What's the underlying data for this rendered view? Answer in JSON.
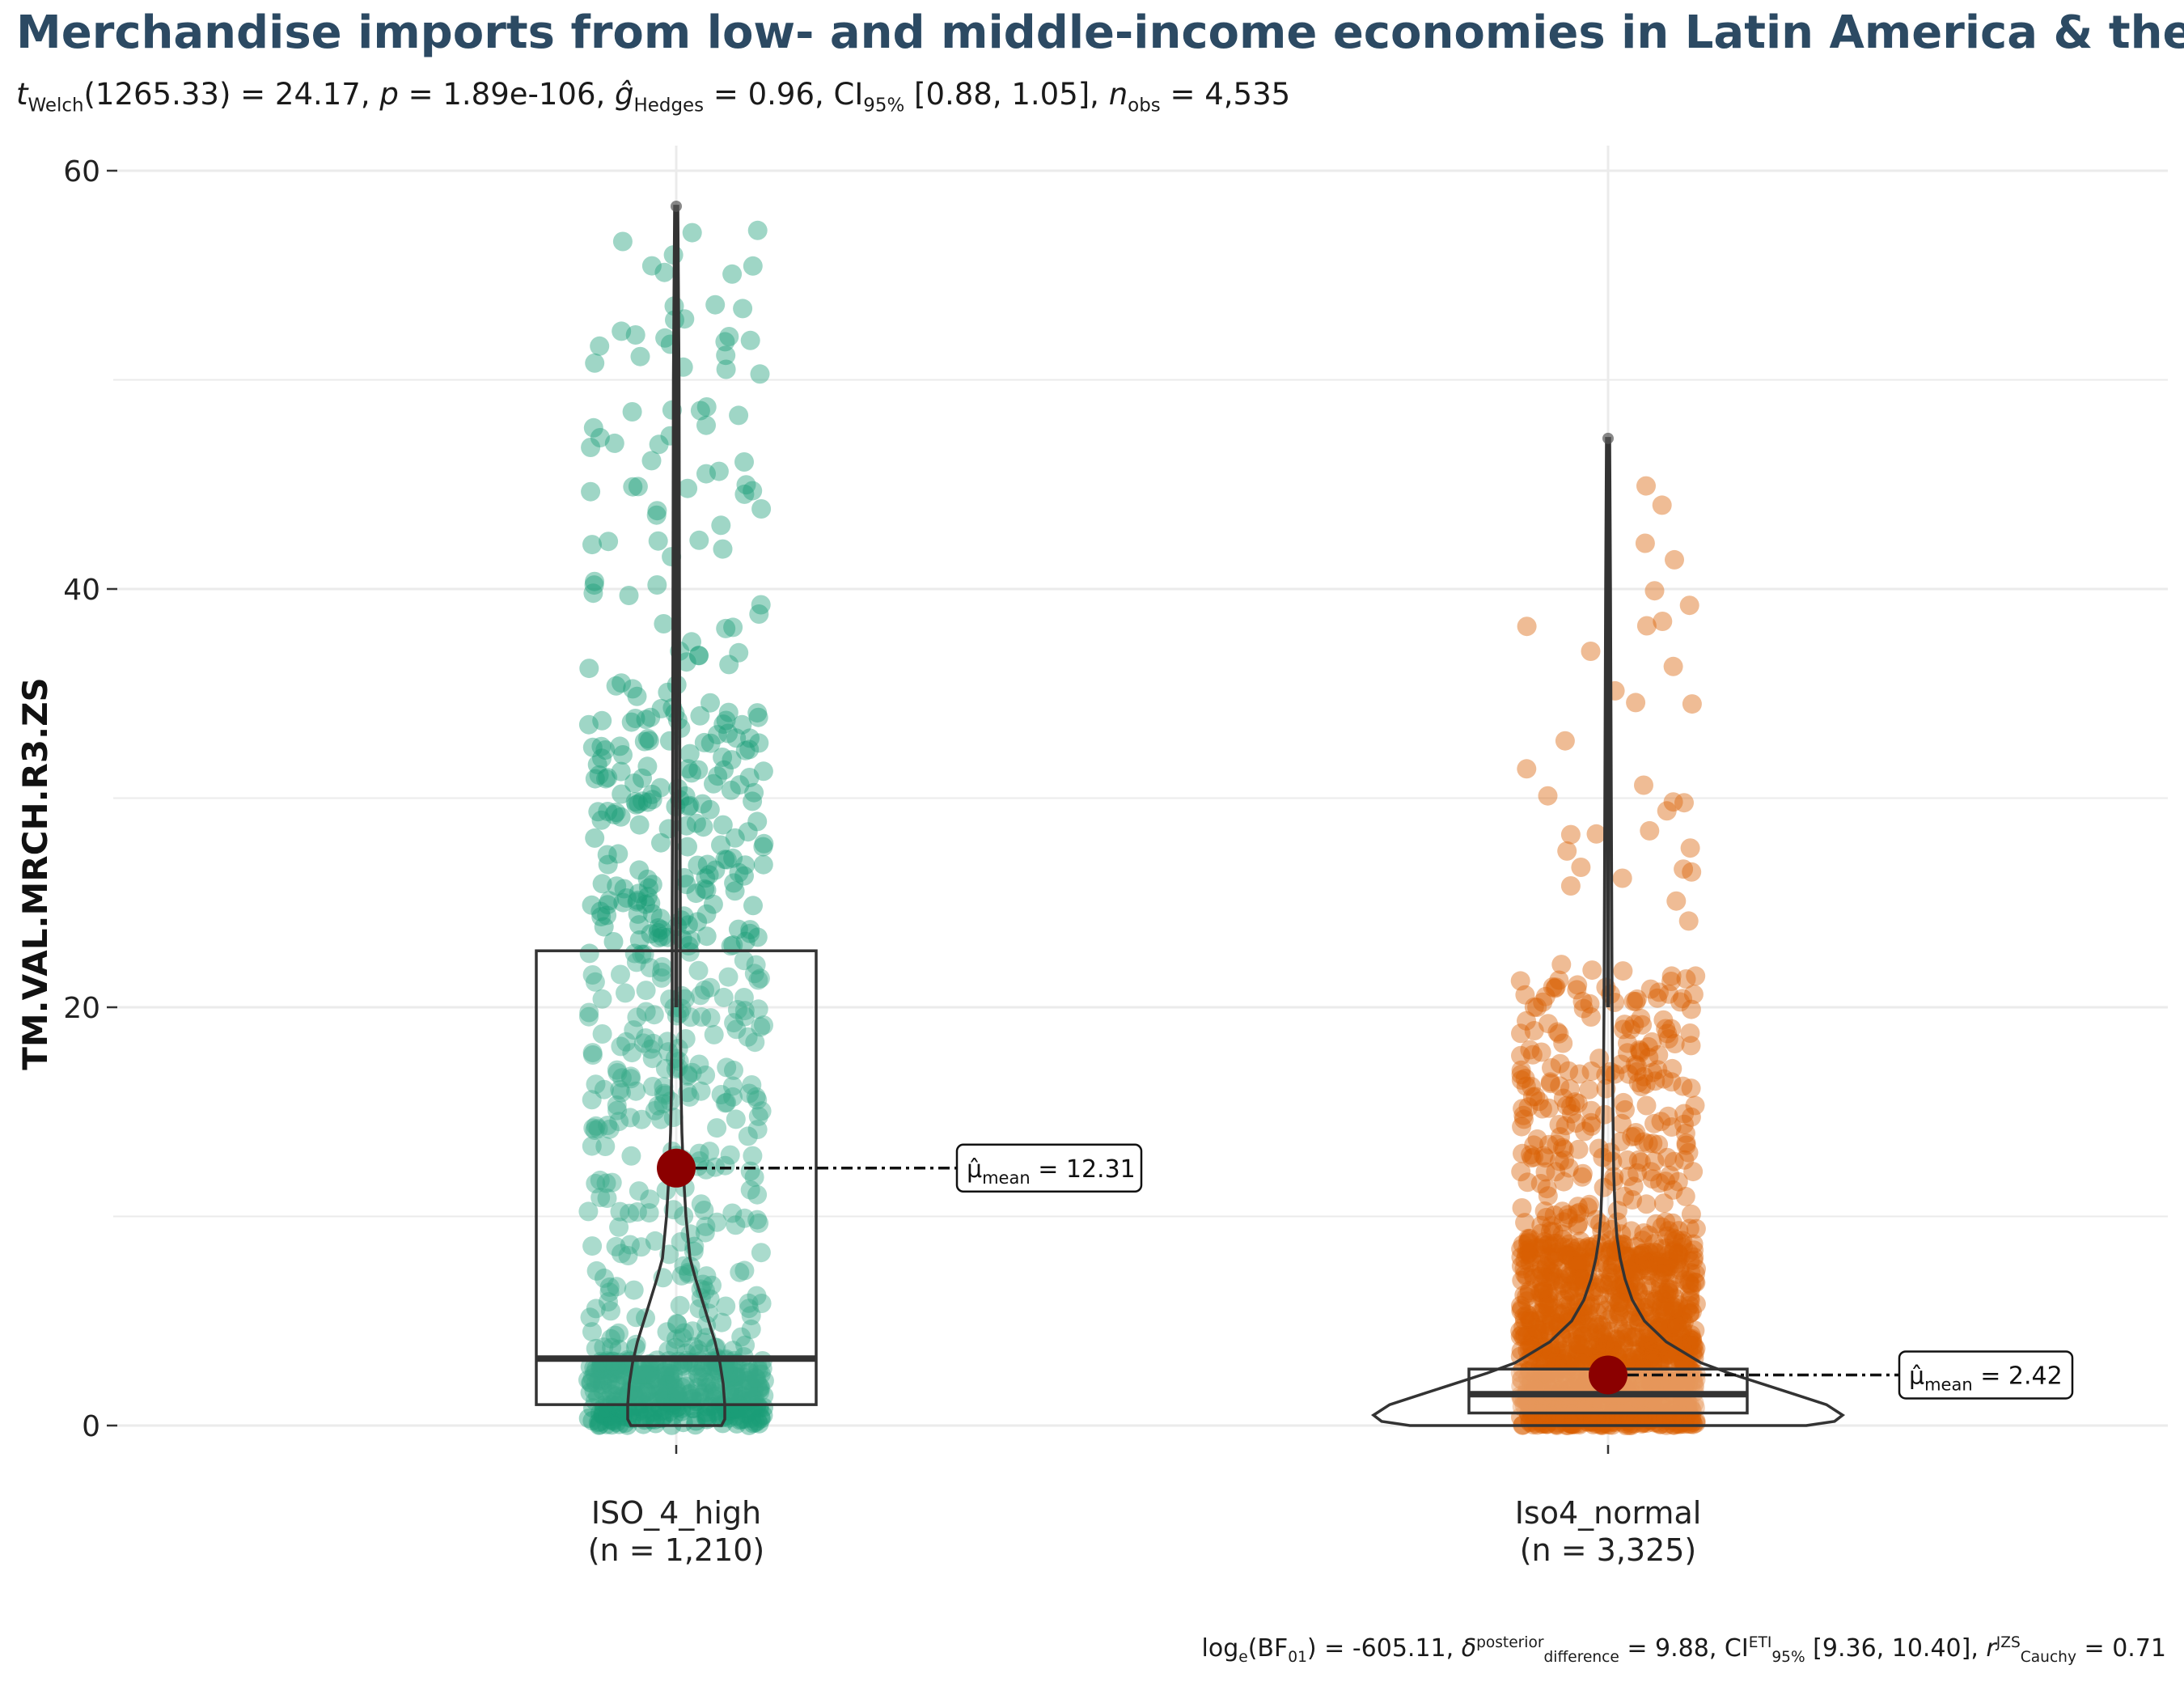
{
  "title": "Merchandise imports from low- and middle-income economies in Latin America & the Caribbean",
  "subtitle": {
    "t": "t",
    "t_sub": "Welch",
    "t_val": "(1265.33) = 24.17, ",
    "p": "p",
    "p_val": " = 1.89e-106, ",
    "g": "ĝ",
    "g_sub": "Hedges",
    "g_val": " = 0.96, CI",
    "ci_sub": "95%",
    "ci_val": " [0.88, 1.05], ",
    "n": "n",
    "n_sub": "obs",
    "n_val": " = 4,535"
  },
  "caption": {
    "bf": "log",
    "bf_sub": "e",
    "bf_mid": "(BF",
    "bf_sub2": "01",
    "bf_val": ") = -605.11, ",
    "delta": "δ",
    "delta_sup": "posterior",
    "delta_sub": "difference",
    "delta_val": " = 9.88, CI",
    "ci_sup": "ETI",
    "ci_sub": "95%",
    "ci_val": " [9.36, 10.40], ",
    "r": "r",
    "r_sup": "JZS",
    "r_sub": "Cauchy",
    "r_val": " = 0.71"
  },
  "chart_data": {
    "type": "violin-box-scatter",
    "ylabel": "TM.VAL.MRCH.R3.ZS",
    "ylim": [
      0,
      60
    ],
    "yticks": [
      0,
      20,
      40,
      60
    ],
    "grid": true,
    "colors": {
      "group1": "#1b9e77",
      "group2": "#d95f02",
      "mean": "#8b0000",
      "title": "#2c4a63"
    },
    "groups": [
      {
        "name": "ISO_4_high",
        "n_label": "(n = 1,210)",
        "n": 1210,
        "box": {
          "q1": 1.0,
          "median": 3.2,
          "q3": 22.7
        },
        "mean": 12.31,
        "mean_label": "μ̂mean = 12.31",
        "mean_text_pre": "μ̂",
        "mean_text_sub": "mean",
        "mean_text_val": " = 12.31",
        "max": 58.3
      },
      {
        "name": "Iso4_normal",
        "n_label": "(n = 3,325)",
        "n": 3325,
        "box": {
          "q1": 0.6,
          "median": 1.5,
          "q3": 2.7
        },
        "mean": 2.42,
        "mean_label": "μ̂mean = 2.42",
        "mean_text_pre": "μ̂",
        "mean_text_sub": "mean",
        "mean_text_val": " = 2.42",
        "max": 47.2
      }
    ]
  }
}
